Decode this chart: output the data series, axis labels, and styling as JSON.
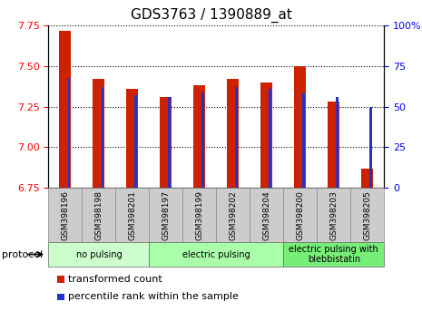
{
  "title": "GDS3763 / 1390889_at",
  "samples": [
    "GSM398196",
    "GSM398198",
    "GSM398201",
    "GSM398197",
    "GSM398199",
    "GSM398202",
    "GSM398204",
    "GSM398200",
    "GSM398203",
    "GSM398205"
  ],
  "transformed_count": [
    7.72,
    7.42,
    7.36,
    7.31,
    7.38,
    7.42,
    7.4,
    7.5,
    7.28,
    6.87
  ],
  "percentile_rank": [
    68,
    62,
    57,
    56,
    59,
    62,
    61,
    58,
    56,
    50
  ],
  "ylim_left": [
    6.75,
    7.75
  ],
  "ylim_right": [
    0,
    100
  ],
  "yticks_left": [
    6.75,
    7.0,
    7.25,
    7.5,
    7.75
  ],
  "yticks_right": [
    0,
    25,
    50,
    75,
    100
  ],
  "bar_color": "#cc2200",
  "percentile_color": "#2233cc",
  "groups": [
    {
      "label": "no pulsing",
      "start": 0,
      "end": 3,
      "color": "#ccffcc"
    },
    {
      "label": "electric pulsing",
      "start": 3,
      "end": 7,
      "color": "#aaffaa"
    },
    {
      "label": "electric pulsing with\nblebbistatin",
      "start": 7,
      "end": 10,
      "color": "#77ee77"
    }
  ],
  "protocol_label": "protocol",
  "legend_items": [
    {
      "label": "transformed count",
      "color": "#cc2200"
    },
    {
      "label": "percentile rank within the sample",
      "color": "#2233cc"
    }
  ],
  "title_fontsize": 11,
  "axis_fontsize": 8,
  "bar_width": 0.35,
  "percentile_bar_width": 0.07,
  "base_value": 6.75,
  "xtick_bg_color": "#cccccc",
  "xtick_fontsize": 6.5,
  "group_fontsize": 7,
  "legend_fontsize": 8
}
